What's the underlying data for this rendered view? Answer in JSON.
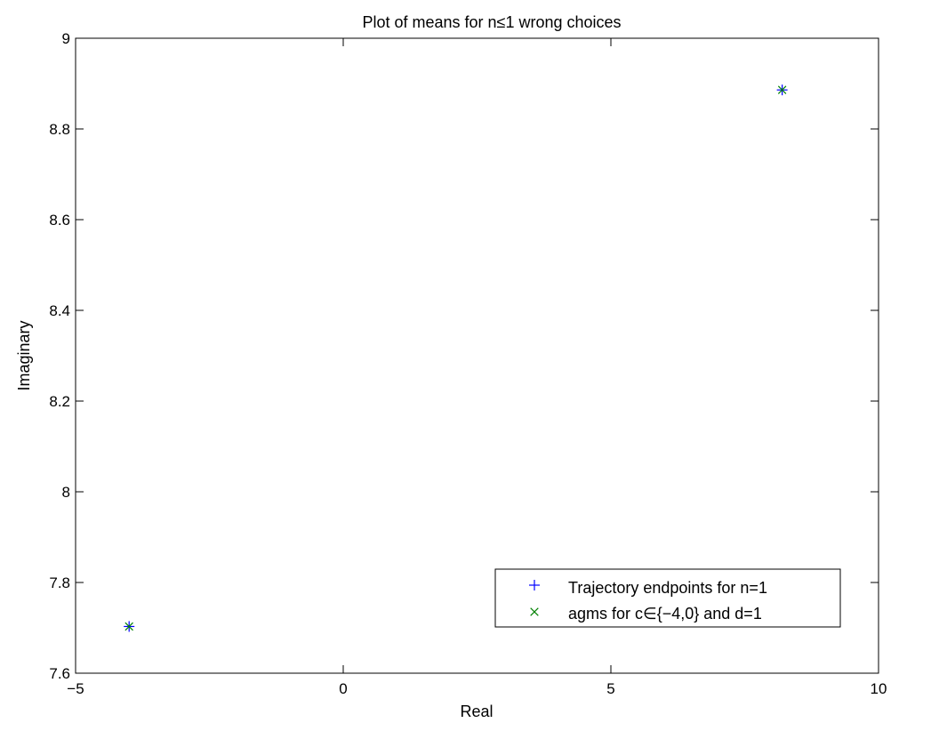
{
  "chart_data": {
    "type": "scatter",
    "title": "Plot of means for n≤1 wrong choices",
    "xlabel": "Real",
    "ylabel": "Imaginary",
    "xlim": [
      -5,
      10
    ],
    "ylim": [
      7.6,
      9
    ],
    "xticks": [
      -5,
      0,
      5,
      10
    ],
    "yticks": [
      7.6,
      7.8,
      8,
      8.2,
      8.4,
      8.6,
      8.8,
      9
    ],
    "x_tick_labels": [
      "−5",
      "0",
      "5",
      "10"
    ],
    "y_tick_labels": [
      "7.6",
      "7.8",
      "8",
      "8.2",
      "8.4",
      "8.6",
      "8.8",
      "9"
    ],
    "grid": false,
    "legend_position": "lower-right",
    "series": [
      {
        "name": "Trajectory endpoints for n=1",
        "marker": "plus",
        "color": "#0000ff",
        "points": [
          {
            "x": -4.0,
            "y": 7.703
          },
          {
            "x": 8.2,
            "y": 8.886
          }
        ]
      },
      {
        "name": "agms for c∈{−4,0} and d=1",
        "marker": "x",
        "color": "#008000",
        "points": [
          {
            "x": -4.0,
            "y": 7.703
          },
          {
            "x": 8.2,
            "y": 8.886
          }
        ]
      }
    ]
  }
}
